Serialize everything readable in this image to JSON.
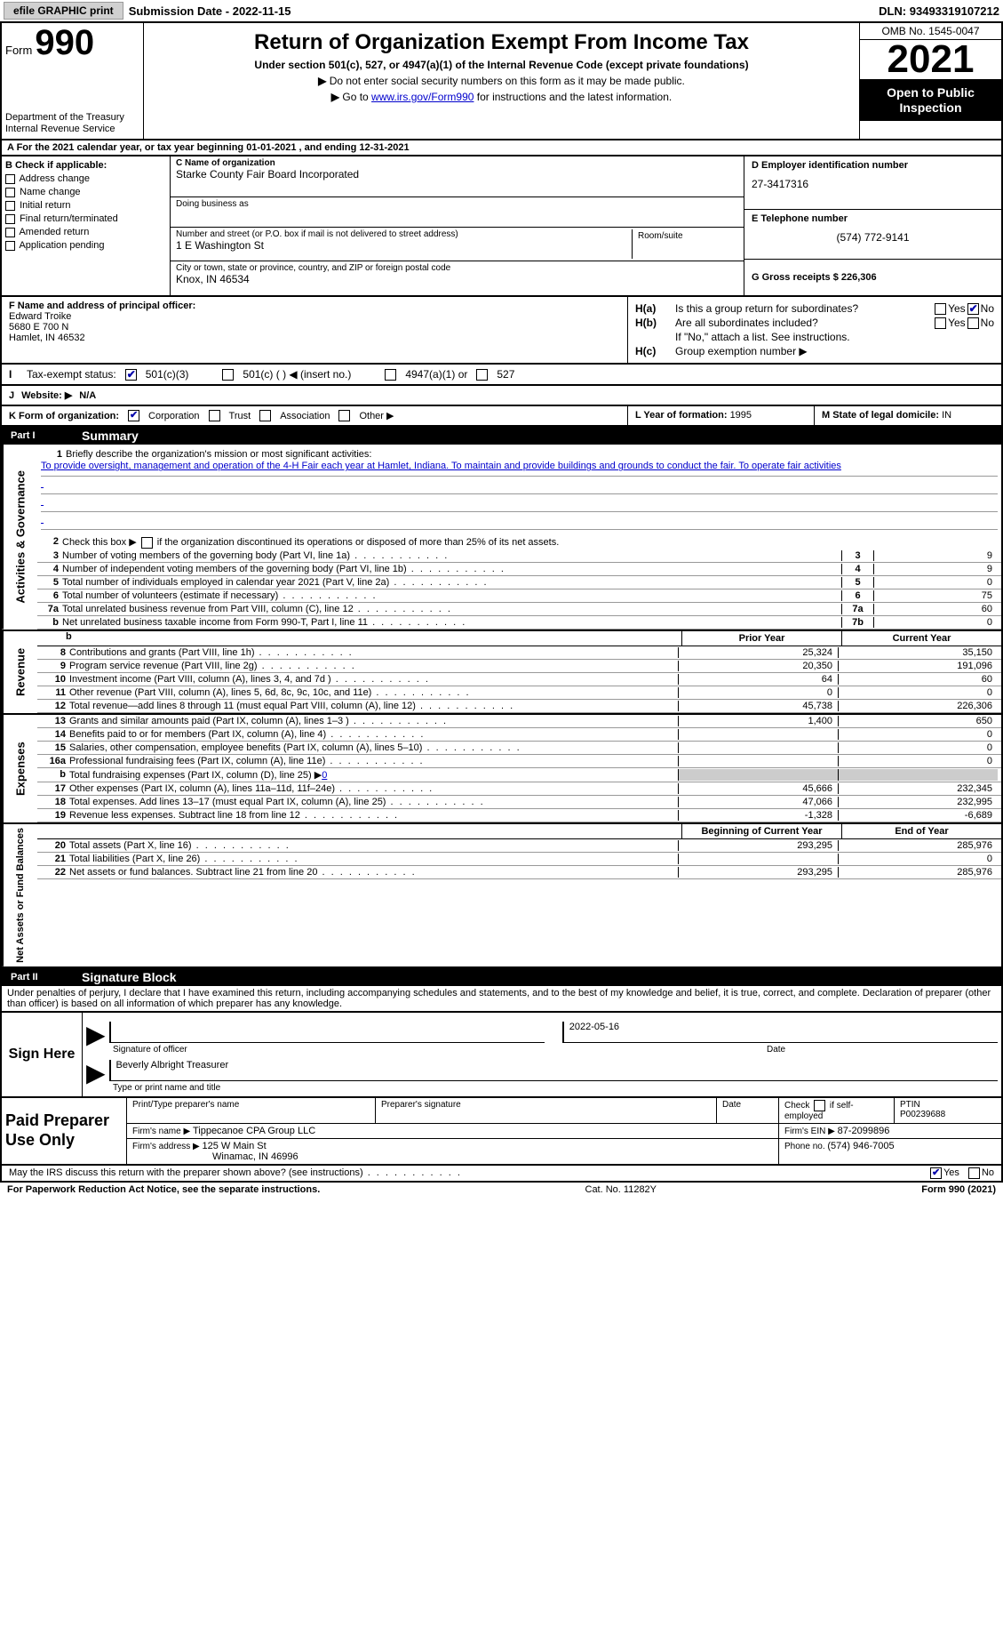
{
  "topbar": {
    "efile_btn": "efile GRAPHIC print",
    "sub_date_label": "Submission Date - ",
    "sub_date": "2022-11-15",
    "dln_label": "DLN: ",
    "dln": "93493319107212"
  },
  "header": {
    "form_label": "Form",
    "form_num": "990",
    "dept": "Department of the Treasury\nInternal Revenue Service",
    "title": "Return of Organization Exempt From Income Tax",
    "sub1": "Under section 501(c), 527, or 4947(a)(1) of the Internal Revenue Code (except private foundations)",
    "sub2_arrow": "▶",
    "sub2": "Do not enter social security numbers on this form as it may be made public.",
    "sub3_arrow": "▶",
    "sub3_pre": "Go to ",
    "sub3_link": "www.irs.gov/Form990",
    "sub3_post": " for instructions and the latest information.",
    "omb": "OMB No. 1545-0047",
    "year": "2021",
    "otp": "Open to Public Inspection"
  },
  "row_a": {
    "text": "A For the 2021 calendar year, or tax year beginning 01-01-2021     , and ending 12-31-2021"
  },
  "section_b": {
    "header": "B Check if applicable:",
    "checks": [
      "Address change",
      "Name change",
      "Initial return",
      "Final return/terminated",
      "Amended return",
      "Application pending"
    ],
    "c_label": "C Name of organization",
    "c_val": "Starke County Fair Board Incorporated",
    "dba_label": "Doing business as",
    "addr_label": "Number and street (or P.O. box if mail is not delivered to street address)",
    "addr_val": "1 E Washington St",
    "room_label": "Room/suite",
    "city_label": "City or town, state or province, country, and ZIP or foreign postal code",
    "city_val": "Knox, IN  46534",
    "d_label": "D Employer identification number",
    "d_val": "27-3417316",
    "e_label": "E Telephone number",
    "e_val": "(574) 772-9141",
    "g_label": "G Gross receipts $ ",
    "g_val": "226,306"
  },
  "mid": {
    "f_label": "F  Name and address of principal officer:",
    "f_name": "Edward Troike",
    "f_addr1": "5680 E 700 N",
    "f_addr2": "Hamlet, IN  46532",
    "ha_label": "H(a)",
    "ha_text": "Is this a group return for subordinates?",
    "hb_label": "H(b)",
    "hb_text": "Are all subordinates included?",
    "hb_note": "If \"No,\" attach a list. See instructions.",
    "hc_label": "H(c)",
    "hc_text": "Group exemption number ▶",
    "yes": "Yes",
    "no": "No"
  },
  "tax_row": {
    "i_label": "I",
    "text": "Tax-exempt status:",
    "opt1": "501(c)(3)",
    "opt2": "501(c) (   ) ◀ (insert no.)",
    "opt3": "4947(a)(1) or",
    "opt4": "527"
  },
  "web_row": {
    "j_label": "J",
    "text": "Website: ▶ ",
    "val": "N/A"
  },
  "form_org": {
    "k_label": "K Form of organization:",
    "opts": [
      "Corporation",
      "Trust",
      "Association",
      "Other ▶"
    ],
    "l_text": "L Year of formation: ",
    "l_val": "1995",
    "m_text": "M State of legal domicile: ",
    "m_val": "IN"
  },
  "part1": {
    "num": "Part I",
    "title": "Summary"
  },
  "summary": {
    "ag_label": "Activities & Governance",
    "line1_num": "1",
    "line1_text": "Briefly describe the organization's mission or most significant activities:",
    "mission": "To provide oversight, management and operation of the 4-H Fair each year at Hamlet, Indiana. To maintain and provide buildings and grounds to conduct the fair. To operate fair activities",
    "line2_num": "2",
    "line2_text": "Check this box ▶",
    "line2_post": "if the organization discontinued its operations or disposed of more than 25% of its net assets.",
    "lines": [
      {
        "n": "3",
        "d": "Number of voting members of the governing body (Part VI, line 1a)",
        "b": "3",
        "v": "9"
      },
      {
        "n": "4",
        "d": "Number of independent voting members of the governing body (Part VI, line 1b)",
        "b": "4",
        "v": "9"
      },
      {
        "n": "5",
        "d": "Total number of individuals employed in calendar year 2021 (Part V, line 2a)",
        "b": "5",
        "v": "0"
      },
      {
        "n": "6",
        "d": "Total number of volunteers (estimate if necessary)",
        "b": "6",
        "v": "75"
      },
      {
        "n": "7a",
        "d": "Total unrelated business revenue from Part VIII, column (C), line 12",
        "b": "7a",
        "v": "60"
      },
      {
        "n": "b",
        "d": "Net unrelated business taxable income from Form 990-T, Part I, line 11",
        "b": "7b",
        "v": "0"
      }
    ],
    "rev_label": "Revenue",
    "prior_hdr": "Prior Year",
    "curr_hdr": "Current Year",
    "rev_lines": [
      {
        "n": "8",
        "d": "Contributions and grants (Part VIII, line 1h)",
        "p": "25,324",
        "c": "35,150"
      },
      {
        "n": "9",
        "d": "Program service revenue (Part VIII, line 2g)",
        "p": "20,350",
        "c": "191,096"
      },
      {
        "n": "10",
        "d": "Investment income (Part VIII, column (A), lines 3, 4, and 7d )",
        "p": "64",
        "c": "60"
      },
      {
        "n": "11",
        "d": "Other revenue (Part VIII, column (A), lines 5, 6d, 8c, 9c, 10c, and 11e)",
        "p": "0",
        "c": "0"
      },
      {
        "n": "12",
        "d": "Total revenue—add lines 8 through 11 (must equal Part VIII, column (A), line 12)",
        "p": "45,738",
        "c": "226,306"
      }
    ],
    "exp_label": "Expenses",
    "exp_lines": [
      {
        "n": "13",
        "d": "Grants and similar amounts paid (Part IX, column (A), lines 1–3 )",
        "p": "1,400",
        "c": "650"
      },
      {
        "n": "14",
        "d": "Benefits paid to or for members (Part IX, column (A), line 4)",
        "p": "",
        "c": "0"
      },
      {
        "n": "15",
        "d": "Salaries, other compensation, employee benefits (Part IX, column (A), lines 5–10)",
        "p": "",
        "c": "0"
      },
      {
        "n": "16a",
        "d": "Professional fundraising fees (Part IX, column (A), line 11e)",
        "p": "",
        "c": "0"
      },
      {
        "n": "b",
        "d": "Total fundraising expenses (Part IX, column (D), line 25) ▶",
        "p": "shade",
        "c": "shade",
        "fund": "0"
      },
      {
        "n": "17",
        "d": "Other expenses (Part IX, column (A), lines 11a–11d, 11f–24e)",
        "p": "45,666",
        "c": "232,345"
      },
      {
        "n": "18",
        "d": "Total expenses. Add lines 13–17 (must equal Part IX, column (A), line 25)",
        "p": "47,066",
        "c": "232,995"
      },
      {
        "n": "19",
        "d": "Revenue less expenses. Subtract line 18 from line 12",
        "p": "-1,328",
        "c": "-6,689"
      }
    ],
    "na_label": "Net Assets or Fund Balances",
    "boy_hdr": "Beginning of Current Year",
    "eoy_hdr": "End of Year",
    "na_lines": [
      {
        "n": "20",
        "d": "Total assets (Part X, line 16)",
        "p": "293,295",
        "c": "285,976"
      },
      {
        "n": "21",
        "d": "Total liabilities (Part X, line 26)",
        "p": "",
        "c": "0"
      },
      {
        "n": "22",
        "d": "Net assets or fund balances. Subtract line 21 from line 20",
        "p": "293,295",
        "c": "285,976"
      }
    ]
  },
  "part2": {
    "num": "Part II",
    "title": "Signature Block"
  },
  "sig": {
    "jurat": "Under penalties of perjury, I declare that I have examined this return, including accompanying schedules and statements, and to the best of my knowledge and belief, it is true, correct, and complete. Declaration of preparer (other than officer) is based on all information of which preparer has any knowledge.",
    "sign_here": "Sign Here",
    "date_val": "2022-05-16",
    "sig_of_off": "Signature of officer",
    "date_lbl": "Date",
    "name_title": "Beverly Albright Treasurer",
    "type_name": "Type or print name and title"
  },
  "prep": {
    "label": "Paid Preparer Use Only",
    "h1": "Print/Type preparer's name",
    "h2": "Preparer's signature",
    "h3": "Date",
    "h4_chk": "Check",
    "h4_if": "if self-employed",
    "h5": "PTIN",
    "ptin": "P00239688",
    "firm_name_lbl": "Firm's name    ▶ ",
    "firm_name": "Tippecanoe CPA Group LLC",
    "firm_ein_lbl": "Firm's EIN ▶ ",
    "firm_ein": "87-2099896",
    "firm_addr_lbl": "Firm's address ▶ ",
    "firm_addr1": "125 W Main St",
    "firm_addr2": "Winamac, IN  46996",
    "phone_lbl": "Phone no. ",
    "phone": "(574) 946-7005"
  },
  "bottom": {
    "text": "May the IRS discuss this return with the preparer shown above? (see instructions)",
    "yes": "Yes",
    "no": "No"
  },
  "footer": {
    "left": "For Paperwork Reduction Act Notice, see the separate instructions.",
    "mid": "Cat. No. 11282Y",
    "right": "Form 990 (2021)"
  }
}
